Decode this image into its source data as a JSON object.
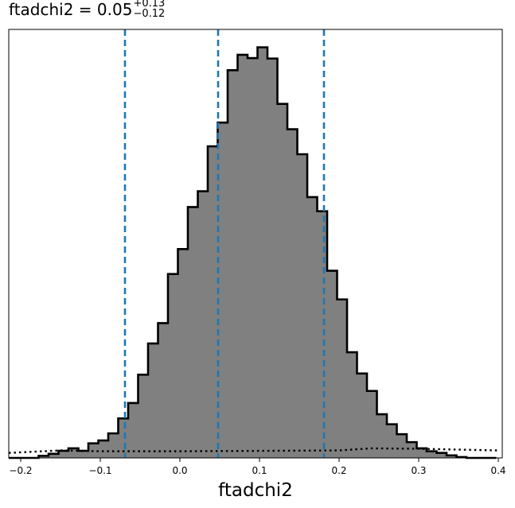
{
  "chart_data": {
    "type": "histogram",
    "title": {
      "prefix": "ftadchi2 = 0.05",
      "sup": "+0.13",
      "sub": "−0.12"
    },
    "xlabel": "ftadchi2",
    "ylabel": "",
    "xlim": [
      -0.215,
      0.405
    ],
    "ylim": [
      0,
      1.03
    ],
    "xticks": [
      -0.2,
      -0.1,
      0.0,
      0.1,
      0.2,
      0.3,
      0.4
    ],
    "xtick_labels": [
      "−0.2",
      "−0.1",
      "0.0",
      "0.1",
      "0.2",
      "0.3",
      "0.4"
    ],
    "y_axis_ticks": "none",
    "grid": false,
    "histogram_fill_color": "#808080",
    "histogram_edge_color": "#000000",
    "quantile_line_color": "#1f77b4",
    "bin_width": 0.0125,
    "bin_edges_start": -0.215,
    "bin_heights": [
      0.0,
      0.0,
      0.0,
      0.005,
      0.01,
      0.017,
      0.023,
      0.017,
      0.035,
      0.042,
      0.059,
      0.095,
      0.132,
      0.2,
      0.275,
      0.324,
      0.442,
      0.502,
      0.603,
      0.641,
      0.749,
      0.806,
      0.932,
      0.969,
      0.961,
      0.987,
      0.96,
      0.851,
      0.79,
      0.73,
      0.627,
      0.593,
      0.45,
      0.381,
      0.254,
      0.203,
      0.161,
      0.105,
      0.081,
      0.057,
      0.038,
      0.023,
      0.016,
      0.012,
      0.006,
      0.002,
      0.0,
      0.0,
      0.0
    ],
    "quantile_lines": [
      -0.069,
      0.048,
      0.181
    ],
    "prior_dotted": {
      "x": [
        -0.215,
        -0.15,
        -0.1,
        0.0,
        0.1,
        0.2,
        0.24,
        0.3,
        0.35,
        0.4
      ],
      "y": [
        0.012,
        0.018,
        0.016,
        0.016,
        0.017,
        0.018,
        0.023,
        0.022,
        0.02,
        0.018
      ]
    }
  }
}
